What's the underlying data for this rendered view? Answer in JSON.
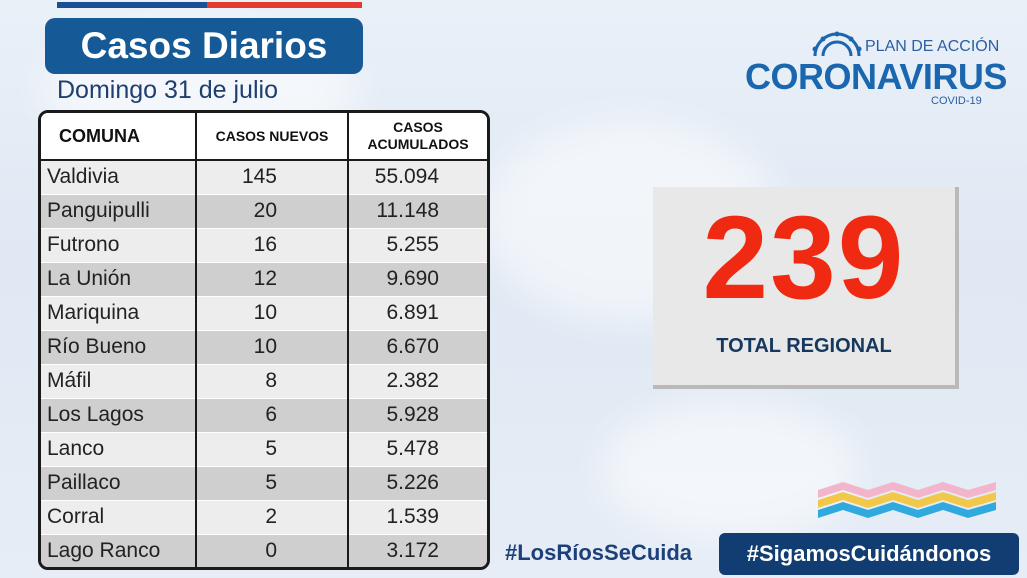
{
  "header": {
    "title": "Casos Diarios",
    "date": "Domingo 31 de julio"
  },
  "logo": {
    "line1": "PLAN DE ACCIÓN",
    "line2": "CORONAVIRUS",
    "line3": "COVID-19"
  },
  "table": {
    "headers": [
      "COMUNA",
      "CASOS NUEVOS",
      "CASOS ACUMULADOS"
    ],
    "rows": [
      {
        "comuna": "Valdivia",
        "nuevos": "145",
        "acumulados": "55.094"
      },
      {
        "comuna": "Panguipulli",
        "nuevos": "20",
        "acumulados": "11.148"
      },
      {
        "comuna": "Futrono",
        "nuevos": "16",
        "acumulados": "5.255"
      },
      {
        "comuna": "La Unión",
        "nuevos": "12",
        "acumulados": "9.690"
      },
      {
        "comuna": "Mariquina",
        "nuevos": "10",
        "acumulados": "6.891"
      },
      {
        "comuna": "Río Bueno",
        "nuevos": "10",
        "acumulados": "6.670"
      },
      {
        "comuna": "Máfil",
        "nuevos": "8",
        "acumulados": "2.382"
      },
      {
        "comuna": "Los Lagos",
        "nuevos": "6",
        "acumulados": "5.928"
      },
      {
        "comuna": "Lanco",
        "nuevos": "5",
        "acumulados": "5.478"
      },
      {
        "comuna": "Paillaco",
        "nuevos": "5",
        "acumulados": "5.226"
      },
      {
        "comuna": "Corral",
        "nuevos": "2",
        "acumulados": "1.539"
      },
      {
        "comuna": "Lago Ranco",
        "nuevos": "0",
        "acumulados": "3.172"
      }
    ]
  },
  "total": {
    "value": "239",
    "label": "TOTAL REGIONAL"
  },
  "hashtags": {
    "left": "#LosRíosSeCuida",
    "right": "#SigamosCuidándonos"
  },
  "colors": {
    "brand_blue": "#155a96",
    "total_red": "#f02a12",
    "hashtag_bg": "#123d72"
  }
}
